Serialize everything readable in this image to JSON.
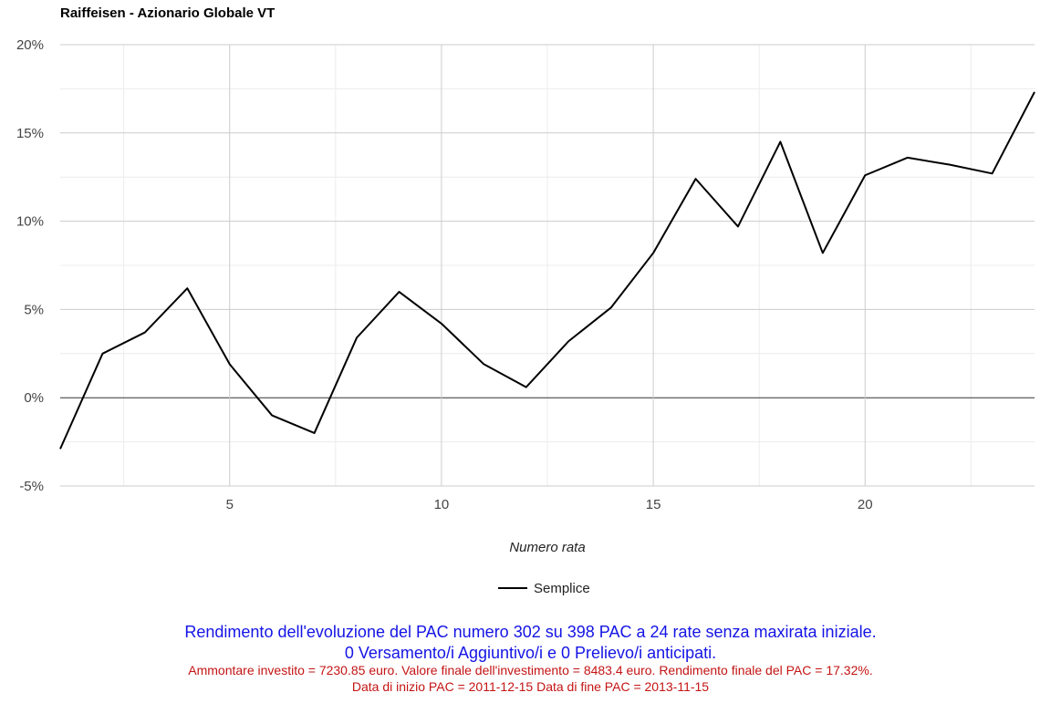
{
  "chart_data": {
    "type": "line",
    "title": "Raiffeisen - Azionario Globale VT",
    "xlabel": "Numero rata",
    "ylabel": "",
    "xlim": [
      1,
      24
    ],
    "ylim": [
      -5,
      20
    ],
    "x_ticks": [
      5,
      10,
      15,
      20
    ],
    "y_ticks": [
      -5,
      0,
      5,
      10,
      15,
      20
    ],
    "y_tick_labels": [
      "-5%",
      "0%",
      "5%",
      "10%",
      "15%",
      "20%"
    ],
    "x_tick_labels": [
      "5",
      "10",
      "15",
      "20"
    ],
    "grid": true,
    "legend_position": "bottom",
    "series": [
      {
        "name": "Semplice",
        "color": "#000000",
        "x": [
          1,
          2,
          3,
          4,
          5,
          6,
          7,
          8,
          9,
          10,
          11,
          12,
          13,
          14,
          15,
          16,
          17,
          18,
          19,
          20,
          21,
          22,
          23,
          24
        ],
        "values": [
          -2.9,
          2.5,
          3.7,
          6.2,
          1.9,
          -1.0,
          -2.0,
          3.4,
          6.0,
          4.2,
          1.9,
          0.6,
          3.2,
          5.1,
          8.2,
          12.4,
          9.7,
          14.5,
          8.2,
          12.6,
          13.6,
          13.2,
          12.7,
          17.32
        ]
      }
    ]
  },
  "caption": {
    "line1": "Rendimento dell'evoluzione del PAC numero 302 su 398 PAC a 24 rate senza maxirata iniziale.",
    "line2": "0 Versamento/i Aggiuntivo/i e 0 Prelievo/i anticipati.",
    "line3": "Ammontare investito = 7230.85 euro. Valore finale dell'investimento = 8483.4 euro. Rendimento finale del PAC = 17.32%.",
    "line4": "Data di inizio PAC = 2011-12-15 Data di fine PAC = 2013-11-15"
  }
}
